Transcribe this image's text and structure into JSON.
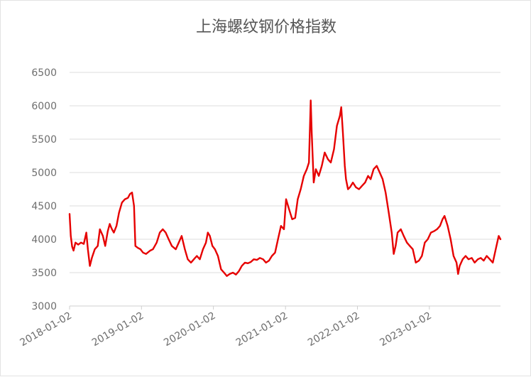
{
  "chart_data": {
    "type": "line",
    "title": "上海螺纹钢价格指数",
    "xlabel": "",
    "ylabel": "",
    "ylim": [
      3000,
      6500
    ],
    "yticks": [
      3000,
      3500,
      4000,
      4500,
      5000,
      5500,
      6000,
      6500
    ],
    "xticks": [
      "2018-01-02",
      "2019-01-02",
      "2020-01-02",
      "2021-01-02",
      "2022-01-02",
      "2023-01-02"
    ],
    "xrange": [
      "2018-01-02",
      "2023-12-29"
    ],
    "grid": true,
    "series": [
      {
        "color": "#e60000",
        "points": [
          [
            "2018-01-02",
            4380
          ],
          [
            "2018-01-08",
            4050
          ],
          [
            "2018-01-15",
            3890
          ],
          [
            "2018-01-22",
            3830
          ],
          [
            "2018-02-01",
            3950
          ],
          [
            "2018-02-15",
            3920
          ],
          [
            "2018-03-01",
            3950
          ],
          [
            "2018-03-15",
            3930
          ],
          [
            "2018-03-28",
            4100
          ],
          [
            "2018-04-05",
            3850
          ],
          [
            "2018-04-15",
            3600
          ],
          [
            "2018-04-25",
            3720
          ],
          [
            "2018-05-10",
            3850
          ],
          [
            "2018-05-25",
            3900
          ],
          [
            "2018-06-05",
            4150
          ],
          [
            "2018-06-20",
            4050
          ],
          [
            "2018-07-02",
            3900
          ],
          [
            "2018-07-15",
            4120
          ],
          [
            "2018-07-25",
            4230
          ],
          [
            "2018-08-05",
            4150
          ],
          [
            "2018-08-15",
            4100
          ],
          [
            "2018-08-28",
            4200
          ],
          [
            "2018-09-10",
            4400
          ],
          [
            "2018-09-25",
            4550
          ],
          [
            "2018-10-10",
            4600
          ],
          [
            "2018-10-25",
            4620
          ],
          [
            "2018-11-05",
            4680
          ],
          [
            "2018-11-15",
            4700
          ],
          [
            "2018-11-25",
            4500
          ],
          [
            "2018-12-02",
            3900
          ],
          [
            "2018-12-15",
            3870
          ],
          [
            "2018-12-28",
            3850
          ],
          [
            "2019-01-10",
            3800
          ],
          [
            "2019-01-25",
            3780
          ],
          [
            "2019-02-15",
            3830
          ],
          [
            "2019-03-01",
            3850
          ],
          [
            "2019-03-20",
            3950
          ],
          [
            "2019-04-05",
            4100
          ],
          [
            "2019-04-20",
            4150
          ],
          [
            "2019-05-05",
            4100
          ],
          [
            "2019-05-20",
            4000
          ],
          [
            "2019-06-05",
            3900
          ],
          [
            "2019-06-25",
            3850
          ],
          [
            "2019-07-10",
            3950
          ],
          [
            "2019-07-25",
            4050
          ],
          [
            "2019-08-10",
            3850
          ],
          [
            "2019-08-25",
            3700
          ],
          [
            "2019-09-10",
            3650
          ],
          [
            "2019-09-25",
            3700
          ],
          [
            "2019-10-10",
            3750
          ],
          [
            "2019-10-25",
            3700
          ],
          [
            "2019-11-10",
            3850
          ],
          [
            "2019-11-25",
            3950
          ],
          [
            "2019-12-05",
            4100
          ],
          [
            "2019-12-15",
            4050
          ],
          [
            "2019-12-28",
            3900
          ],
          [
            "2020-01-10",
            3850
          ],
          [
            "2020-01-25",
            3750
          ],
          [
            "2020-02-10",
            3550
          ],
          [
            "2020-02-25",
            3500
          ],
          [
            "2020-03-10",
            3450
          ],
          [
            "2020-03-25",
            3480
          ],
          [
            "2020-04-10",
            3500
          ],
          [
            "2020-04-25",
            3470
          ],
          [
            "2020-05-10",
            3520
          ],
          [
            "2020-05-25",
            3600
          ],
          [
            "2020-06-10",
            3650
          ],
          [
            "2020-06-25",
            3640
          ],
          [
            "2020-07-10",
            3660
          ],
          [
            "2020-07-25",
            3700
          ],
          [
            "2020-08-10",
            3690
          ],
          [
            "2020-08-25",
            3720
          ],
          [
            "2020-09-10",
            3700
          ],
          [
            "2020-09-25",
            3650
          ],
          [
            "2020-10-10",
            3680
          ],
          [
            "2020-10-25",
            3750
          ],
          [
            "2020-11-10",
            3800
          ],
          [
            "2020-11-25",
            4000
          ],
          [
            "2020-12-10",
            4200
          ],
          [
            "2020-12-25",
            4150
          ],
          [
            "2021-01-05",
            4600
          ],
          [
            "2021-01-20",
            4450
          ],
          [
            "2021-02-05",
            4300
          ],
          [
            "2021-02-20",
            4320
          ],
          [
            "2021-03-05",
            4600
          ],
          [
            "2021-03-20",
            4750
          ],
          [
            "2021-04-05",
            4950
          ],
          [
            "2021-04-20",
            5050
          ],
          [
            "2021-05-01",
            5150
          ],
          [
            "2021-05-10",
            6080
          ],
          [
            "2021-05-15",
            5600
          ],
          [
            "2021-05-25",
            4850
          ],
          [
            "2021-06-05",
            5050
          ],
          [
            "2021-06-20",
            4950
          ],
          [
            "2021-07-05",
            5100
          ],
          [
            "2021-07-20",
            5300
          ],
          [
            "2021-08-05",
            5200
          ],
          [
            "2021-08-20",
            5150
          ],
          [
            "2021-09-05",
            5350
          ],
          [
            "2021-09-20",
            5700
          ],
          [
            "2021-10-05",
            5850
          ],
          [
            "2021-10-12",
            5980
          ],
          [
            "2021-10-20",
            5600
          ],
          [
            "2021-10-30",
            5100
          ],
          [
            "2021-11-05",
            4900
          ],
          [
            "2021-11-15",
            4750
          ],
          [
            "2021-11-25",
            4780
          ],
          [
            "2021-12-10",
            4850
          ],
          [
            "2021-12-25",
            4780
          ],
          [
            "2022-01-10",
            4750
          ],
          [
            "2022-01-25",
            4800
          ],
          [
            "2022-02-10",
            4850
          ],
          [
            "2022-02-25",
            4950
          ],
          [
            "2022-03-10",
            4900
          ],
          [
            "2022-03-25",
            5050
          ],
          [
            "2022-04-10",
            5100
          ],
          [
            "2022-04-25",
            5000
          ],
          [
            "2022-05-10",
            4900
          ],
          [
            "2022-05-25",
            4700
          ],
          [
            "2022-06-10",
            4400
          ],
          [
            "2022-06-25",
            4100
          ],
          [
            "2022-07-05",
            3780
          ],
          [
            "2022-07-15",
            3900
          ],
          [
            "2022-07-25",
            4100
          ],
          [
            "2022-08-10",
            4150
          ],
          [
            "2022-08-25",
            4050
          ],
          [
            "2022-09-10",
            3950
          ],
          [
            "2022-09-25",
            3900
          ],
          [
            "2022-10-10",
            3850
          ],
          [
            "2022-10-25",
            3650
          ],
          [
            "2022-11-10",
            3680
          ],
          [
            "2022-11-25",
            3750
          ],
          [
            "2022-12-10",
            3950
          ],
          [
            "2022-12-25",
            4000
          ],
          [
            "2023-01-10",
            4100
          ],
          [
            "2023-01-25",
            4120
          ],
          [
            "2023-02-10",
            4150
          ],
          [
            "2023-02-25",
            4200
          ],
          [
            "2023-03-10",
            4300
          ],
          [
            "2023-03-20",
            4350
          ],
          [
            "2023-04-05",
            4200
          ],
          [
            "2023-04-20",
            4000
          ],
          [
            "2023-05-05",
            3750
          ],
          [
            "2023-05-20",
            3650
          ],
          [
            "2023-05-28",
            3480
          ],
          [
            "2023-06-05",
            3600
          ],
          [
            "2023-06-20",
            3700
          ],
          [
            "2023-07-05",
            3750
          ],
          [
            "2023-07-20",
            3700
          ],
          [
            "2023-08-05",
            3720
          ],
          [
            "2023-08-20",
            3650
          ],
          [
            "2023-09-05",
            3700
          ],
          [
            "2023-09-20",
            3720
          ],
          [
            "2023-10-05",
            3680
          ],
          [
            "2023-10-20",
            3750
          ],
          [
            "2023-11-05",
            3700
          ],
          [
            "2023-11-20",
            3650
          ],
          [
            "2023-12-05",
            3850
          ],
          [
            "2023-12-20",
            4050
          ],
          [
            "2023-12-29",
            4000
          ]
        ]
      }
    ]
  }
}
